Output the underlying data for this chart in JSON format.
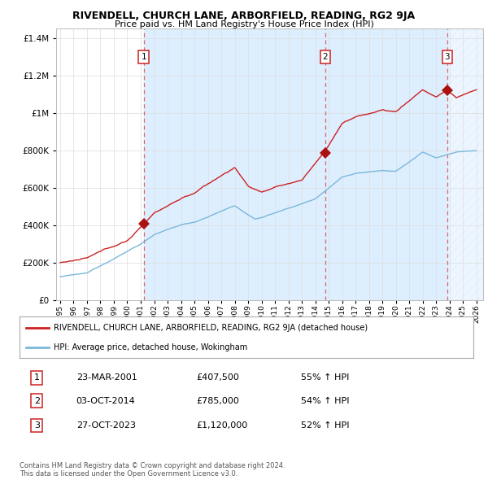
{
  "title": "RIVENDELL, CHURCH LANE, ARBORFIELD, READING, RG2 9JA",
  "subtitle": "Price paid vs. HM Land Registry's House Price Index (HPI)",
  "ytick_values": [
    0,
    200000,
    400000,
    600000,
    800000,
    1000000,
    1200000,
    1400000
  ],
  "ylim": [
    0,
    1450000
  ],
  "xlim_start": 1994.7,
  "xlim_end": 2026.5,
  "hpi_color": "#7ab8d9",
  "price_color": "#cc2222",
  "sale_marker_color": "#aa1111",
  "vline_color": "#dd6666",
  "shade_color": "#ddeeff",
  "hatch_color": "#ccddee",
  "transactions": [
    {
      "label": "1",
      "date": 2001.22,
      "price": 407500
    },
    {
      "label": "2",
      "date": 2014.75,
      "price": 785000
    },
    {
      "label": "3",
      "date": 2023.82,
      "price": 1120000
    }
  ],
  "legend_price_label": "RIVENDELL, CHURCH LANE, ARBORFIELD, READING, RG2 9JA (detached house)",
  "legend_hpi_label": "HPI: Average price, detached house, Wokingham",
  "table_rows": [
    [
      "1",
      "23-MAR-2001",
      "£407,500",
      "55% ↑ HPI"
    ],
    [
      "2",
      "03-OCT-2014",
      "£785,000",
      "54% ↑ HPI"
    ],
    [
      "3",
      "27-OCT-2023",
      "£1,120,000",
      "52% ↑ HPI"
    ]
  ],
  "footer": "Contains HM Land Registry data © Crown copyright and database right 2024.\nThis data is licensed under the Open Government Licence v3.0.",
  "background_color": "#ffffff",
  "grid_color": "#dddddd"
}
